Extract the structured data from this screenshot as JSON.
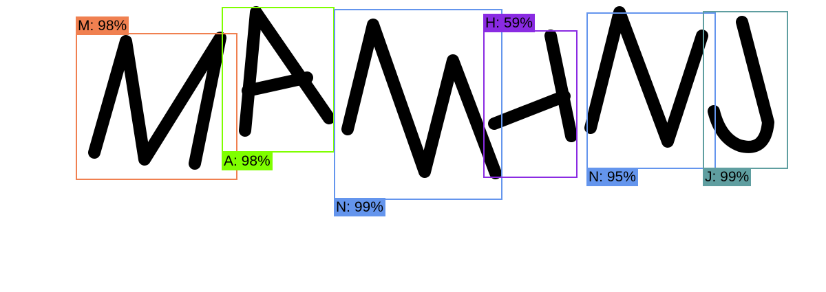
{
  "detections": [
    {
      "label": "M: 98%",
      "color": "#f08050"
    },
    {
      "label": "A: 98%",
      "color": "#7fff00"
    },
    {
      "label": "N: 99%",
      "color": "#6495ed"
    },
    {
      "label": "H: 59%",
      "color": "#8a2be2"
    },
    {
      "label": "N: 95%",
      "color": "#6495ed"
    },
    {
      "label": "J: 99%",
      "color": "#5f9ea0"
    }
  ]
}
